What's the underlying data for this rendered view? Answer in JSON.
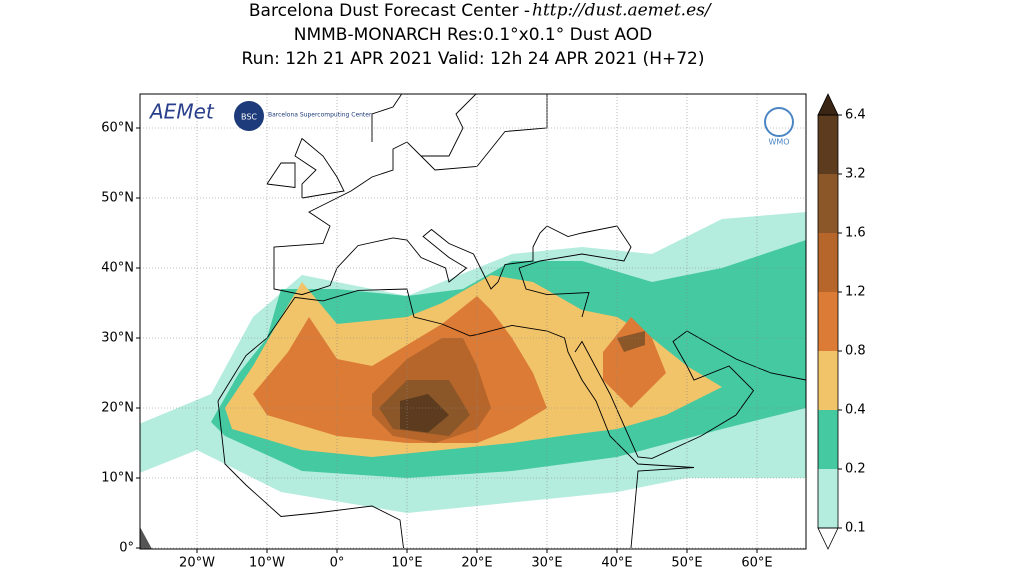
{
  "header": {
    "title_prefix": "Barcelona Dust Forecast Center - ",
    "url": "http://dust.aemet.es/",
    "model_line": "NMMB-MONARCH    Res:0.1°x0.1°    Dust AOD",
    "run_line": "Run: 12h 21 APR 2021   Valid: 12h 24 APR 2021 (H+72)"
  },
  "logos": {
    "aemet": "AEMet",
    "bsc": "BSC",
    "bsc_name": "Barcelona Supercomputing Center",
    "wmo": "WMO"
  },
  "map": {
    "lon_ticks": [
      {
        "value": -20,
        "label": "20°W"
      },
      {
        "value": -10,
        "label": "10°W"
      },
      {
        "value": 0,
        "label": "0°"
      },
      {
        "value": 10,
        "label": "10°E"
      },
      {
        "value": 20,
        "label": "20°E"
      },
      {
        "value": 30,
        "label": "30°E"
      },
      {
        "value": 40,
        "label": "40°E"
      },
      {
        "value": 50,
        "label": "50°E"
      },
      {
        "value": 60,
        "label": "60°E"
      }
    ],
    "lat_ticks": [
      {
        "value": 0,
        "label": "0°"
      },
      {
        "value": 10,
        "label": "10°N"
      },
      {
        "value": 20,
        "label": "20°N"
      },
      {
        "value": 30,
        "label": "30°N"
      },
      {
        "value": 40,
        "label": "40°N"
      },
      {
        "value": 50,
        "label": "50°N"
      },
      {
        "value": 60,
        "label": "60°N"
      }
    ]
  },
  "colorbar": {
    "levels": [
      0.1,
      0.2,
      0.4,
      0.8,
      1.2,
      1.6,
      3.2,
      6.4
    ],
    "colors": [
      "#b4ecde",
      "#45c9a0",
      "#f2c46a",
      "#dc7b36",
      "#b6662b",
      "#8b5628",
      "#5d3b1f"
    ],
    "under_color": "#ffffff",
    "over_color": "#3a2514"
  }
}
